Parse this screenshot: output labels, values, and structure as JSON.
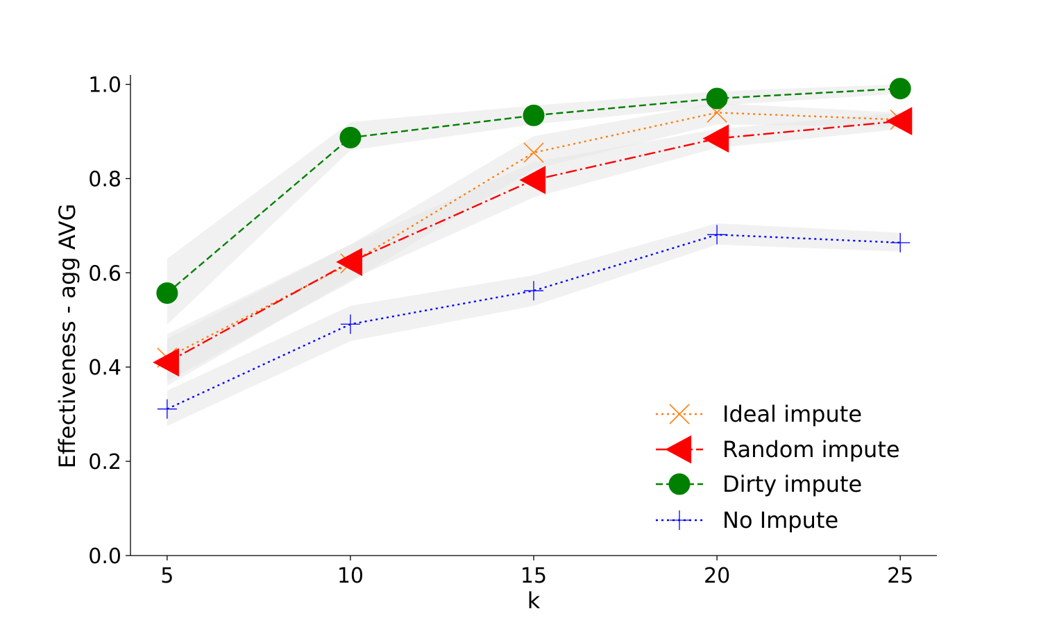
{
  "chart_data": {
    "type": "line",
    "title": "",
    "xlabel": "k",
    "ylabel": "Effectiveness - agg AVG",
    "x": [
      5,
      10,
      15,
      20,
      25
    ],
    "xlim": [
      4,
      26
    ],
    "ylim": [
      0,
      1.02
    ],
    "xticks": [
      5,
      10,
      15,
      20,
      25
    ],
    "yticks": [
      0.0,
      0.2,
      0.4,
      0.6,
      0.8,
      1.0
    ],
    "ytick_labels": [
      "0.0",
      "0.2",
      "0.4",
      "0.6",
      "0.8",
      "1.0"
    ],
    "grid": false,
    "legend_position": "lower-right",
    "band_color": "#e6e6e6",
    "series": [
      {
        "name": "Ideal impute",
        "color": "#ff7f0e",
        "line_style": "dotted",
        "marker": "x",
        "values": [
          0.42,
          0.62,
          0.855,
          0.94,
          0.925
        ],
        "band_lower": [
          0.37,
          0.58,
          0.82,
          0.915,
          0.91
        ],
        "band_upper": [
          0.47,
          0.66,
          0.89,
          0.96,
          0.94
        ]
      },
      {
        "name": "Random impute",
        "color": "#ff0000",
        "line_style": "dashdot",
        "marker": "triangle-left",
        "values": [
          0.41,
          0.623,
          0.797,
          0.885,
          0.922
        ],
        "band_lower": [
          0.36,
          0.585,
          0.76,
          0.865,
          0.905
        ],
        "band_upper": [
          0.46,
          0.66,
          0.835,
          0.905,
          0.94
        ]
      },
      {
        "name": "Dirty impute",
        "color": "#008000",
        "line_style": "dashed",
        "marker": "circle",
        "values": [
          0.557,
          0.887,
          0.934,
          0.97,
          0.991
        ],
        "band_lower": [
          0.49,
          0.86,
          0.915,
          0.955,
          0.98
        ],
        "band_upper": [
          0.63,
          0.92,
          0.955,
          0.985,
          1.0
        ]
      },
      {
        "name": "No Impute",
        "color": "#0000ff",
        "line_style": "dotted",
        "marker": "plus",
        "values": [
          0.311,
          0.491,
          0.562,
          0.681,
          0.664
        ],
        "band_lower": [
          0.275,
          0.455,
          0.53,
          0.66,
          0.645
        ],
        "band_upper": [
          0.35,
          0.53,
          0.595,
          0.705,
          0.685
        ]
      }
    ]
  }
}
